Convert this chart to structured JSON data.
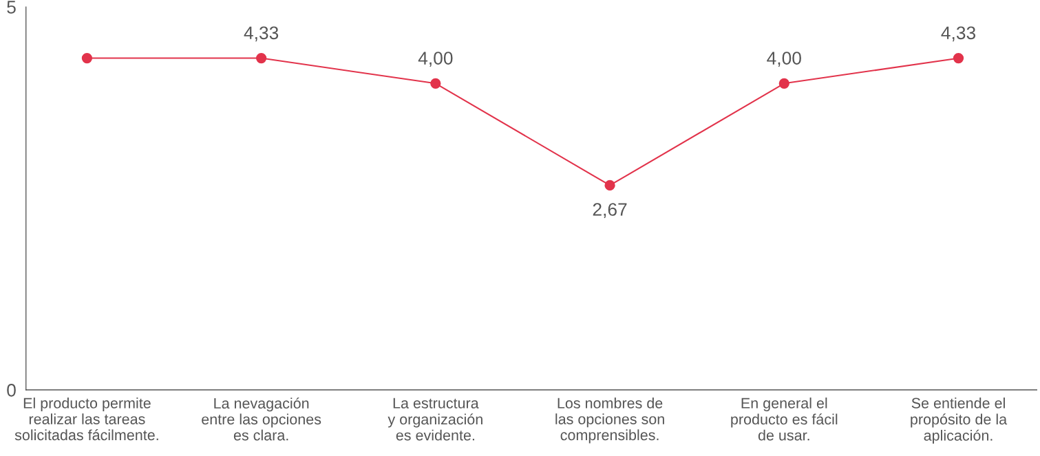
{
  "chart_data": {
    "type": "line",
    "categories": [
      "El producto permite\nrealizar las tareas\nsolicitadas fácilmente.",
      "La nevagación\nentre las opciones\nes clara.",
      "La estructura\ny organización\nes evidente.",
      "Los nombres de\nlas opciones son\ncomprensibles.",
      "En general el\nproducto es fácil\nde usar.",
      "Se entiende el\npropósito de la\naplicación."
    ],
    "series": [
      {
        "color": "#e2334b",
        "values": [
          4.33,
          4.33,
          4.0,
          2.67,
          4.0,
          4.33
        ],
        "value_labels": [
          null,
          "4,33",
          "4,00",
          "2,67",
          "4,00",
          "4,33"
        ]
      }
    ],
    "ylim": [
      0,
      5
    ],
    "yticks": [
      0,
      5
    ],
    "grid": false,
    "legend": false,
    "marker": "circle",
    "line_style": "solid"
  }
}
